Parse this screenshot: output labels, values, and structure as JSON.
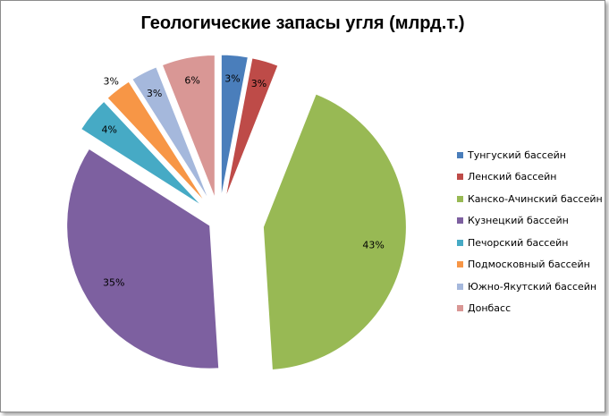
{
  "chart_data": {
    "type": "pie",
    "title": "Геологические запасы угля (млрд.т.)",
    "slices": [
      {
        "name": "Тунгуский бассейн",
        "value": 3,
        "label": "3%",
        "color": "#4a7ebb"
      },
      {
        "name": "Ленский бассейн",
        "value": 3,
        "label": "3%",
        "color": "#be4b48"
      },
      {
        "name": "Канско-Ачинский бассейн",
        "value": 43,
        "label": "43%",
        "color": "#98b954"
      },
      {
        "name": "Кузнецкий бассейн",
        "value": 35,
        "label": "35%",
        "color": "#7d60a0"
      },
      {
        "name": "Печорский бассейн",
        "value": 4,
        "label": "4%",
        "color": "#46aac5"
      },
      {
        "name": "Подмосковный бассейн",
        "value": 3,
        "label": "3%",
        "color": "#f79646"
      },
      {
        "name": "Южно-Якутский бассейн",
        "value": 3,
        "label": "3%",
        "color": "#a5b8dc"
      },
      {
        "name": "Донбасс",
        "value": 6,
        "label": "6%",
        "color": "#d99795"
      }
    ],
    "legend_position": "right",
    "exploded": true
  }
}
